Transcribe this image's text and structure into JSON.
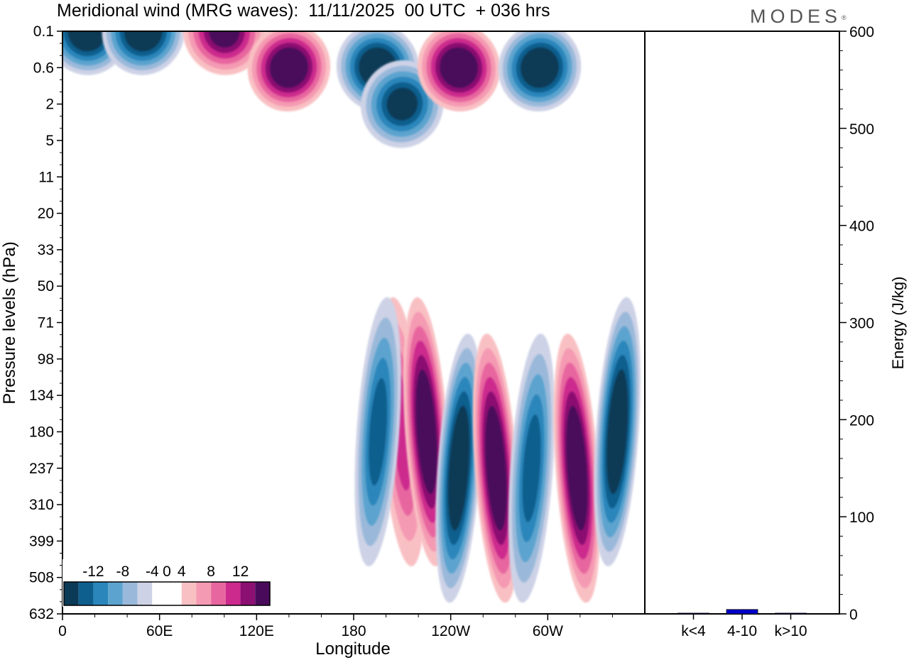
{
  "title": "Meridional wind (MRG waves):  11/11/2025  00 UTC  + 036 hrs",
  "brand": "MODES",
  "brand_mark": "®",
  "chart_data": [
    {
      "type": "heatmap",
      "title": "Meridional wind (MRG waves):  11/11/2025  00 UTC  + 036 hrs",
      "xlabel": "Longitude",
      "ylabel": "Pressure levels (hPa)",
      "x_tick_labels": [
        "0",
        "60E",
        "120E",
        "180",
        "120W",
        "60W"
      ],
      "y_tick_labels": [
        "0.1",
        "0.6",
        "2",
        "5",
        "11",
        "20",
        "33",
        "50",
        "71",
        "98",
        "134",
        "180",
        "237",
        "310",
        "399",
        "508",
        "632"
      ],
      "colorbar": {
        "labels": [
          "-12",
          "-8",
          "-4",
          "0",
          "4",
          "8",
          "12"
        ],
        "levels": [
          -14,
          -12,
          -10,
          -8,
          -6,
          -4,
          -2,
          2,
          4,
          6,
          8,
          10,
          12,
          14
        ],
        "colors": [
          "#0b3a57",
          "#0f5f8e",
          "#2a86bb",
          "#5ca4cf",
          "#9ab9da",
          "#cdd2e6",
          "#ffffff",
          "#ffffff",
          "#f9c0c3",
          "#f59ab3",
          "#e8669f",
          "#cd2a8e",
          "#8c0f72",
          "#4a0a5c"
        ]
      },
      "features": [
        {
          "lon": 15,
          "level": "0.1",
          "sign": "-",
          "peak": -14
        },
        {
          "lon": 50,
          "level": "0.1",
          "sign": "-",
          "peak": -14
        },
        {
          "lon": 100,
          "level": "0.1",
          "sign": "+",
          "peak": 12
        },
        {
          "lon": 140,
          "level": "0.6",
          "sign": "+",
          "peak": 14
        },
        {
          "lon": 195,
          "level": "0.6",
          "sign": "-",
          "peak": -14
        },
        {
          "lon": 210,
          "level": "2",
          "sign": "-",
          "peak": -12
        },
        {
          "lon": 245,
          "level": "0.6",
          "sign": "+",
          "peak": 14
        },
        {
          "lon": 295,
          "level": "0.6",
          "sign": "-",
          "peak": -14
        },
        {
          "lon": 210,
          "level": "180",
          "sign": "+",
          "peak": 8
        },
        {
          "lon": 195,
          "level": "180",
          "sign": "-",
          "peak": -10
        },
        {
          "lon": 225,
          "level": "180",
          "sign": "+",
          "peak": 14
        },
        {
          "lon": 245,
          "level": "237",
          "sign": "-",
          "peak": -14
        },
        {
          "lon": 268,
          "level": "237",
          "sign": "+",
          "peak": 14
        },
        {
          "lon": 290,
          "level": "237",
          "sign": "-",
          "peak": -10
        },
        {
          "lon": 318,
          "level": "237",
          "sign": "+",
          "peak": 14
        },
        {
          "lon": 343,
          "level": "180",
          "sign": "-",
          "peak": -14
        }
      ]
    },
    {
      "type": "bar",
      "categories": [
        "k<4",
        "4-10",
        "k>10"
      ],
      "values": [
        0.3,
        4.5,
        0.3
      ],
      "ylabel": "Energy (J/kg)",
      "ylim": [
        0,
        600
      ],
      "y_tick_labels": [
        "0",
        "100",
        "200",
        "300",
        "400",
        "500",
        "600"
      ],
      "bar_color": "#0000cc"
    }
  ]
}
